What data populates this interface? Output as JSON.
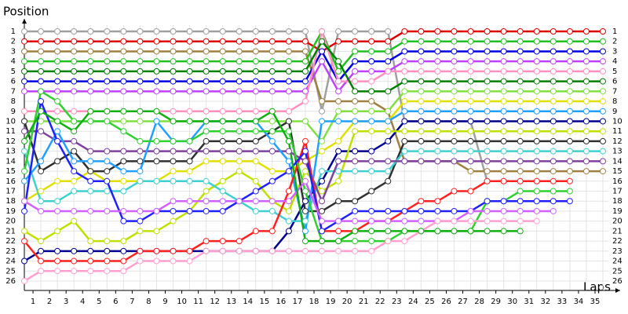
{
  "chart_data": {
    "type": "line",
    "title": "Position",
    "x_label": "Laps",
    "x": [
      0,
      1,
      2,
      3,
      4,
      5,
      6,
      7,
      8,
      9,
      10,
      11,
      12,
      13,
      14,
      15,
      16,
      17,
      18,
      19,
      20,
      21,
      22,
      23,
      24,
      25,
      26,
      27,
      28,
      29,
      30,
      31,
      32,
      33,
      34,
      35
    ],
    "xlim": [
      0,
      35
    ],
    "xticks": [
      1,
      2,
      3,
      4,
      5,
      6,
      7,
      8,
      9,
      10,
      11,
      12,
      13,
      14,
      15,
      16,
      17,
      18,
      19,
      20,
      21,
      22,
      23,
      24,
      25,
      26,
      27,
      28,
      29,
      30,
      31,
      32,
      33,
      34,
      35
    ],
    "ylim": [
      1,
      26
    ],
    "yticks": [
      1,
      2,
      3,
      4,
      5,
      6,
      7,
      8,
      9,
      10,
      11,
      12,
      13,
      14,
      15,
      16,
      17,
      18,
      19,
      20,
      21,
      22,
      23,
      24,
      25,
      26
    ],
    "grid": true,
    "series": [
      {
        "color": "#a0a0a0",
        "values": [
          1,
          1,
          1,
          1,
          1,
          1,
          1,
          1,
          1,
          1,
          1,
          1,
          1,
          1,
          1,
          1,
          1,
          1,
          9,
          1,
          1,
          1,
          1,
          10,
          10,
          10,
          10,
          10,
          16,
          16,
          16,
          16,
          null,
          null,
          null,
          null
        ]
      },
      {
        "color": "#e00000",
        "values": [
          2,
          2,
          2,
          2,
          2,
          2,
          2,
          2,
          2,
          2,
          2,
          2,
          2,
          2,
          2,
          2,
          2,
          2,
          3,
          2,
          2,
          2,
          2,
          1,
          1,
          1,
          1,
          1,
          1,
          1,
          1,
          1,
          1,
          1,
          1,
          1
        ]
      },
      {
        "color": "#a08040",
        "values": [
          3,
          3,
          3,
          3,
          3,
          3,
          3,
          3,
          3,
          3,
          3,
          3,
          3,
          3,
          3,
          3,
          3,
          3,
          8,
          8,
          8,
          8,
          9,
          14,
          14,
          14,
          14,
          15,
          15,
          15,
          15,
          15,
          15,
          15,
          15,
          15
        ]
      },
      {
        "color": "#20c020",
        "values": [
          4,
          4,
          4,
          4,
          4,
          4,
          4,
          4,
          4,
          4,
          4,
          4,
          4,
          4,
          4,
          4,
          4,
          4,
          1,
          5,
          3,
          3,
          3,
          2,
          2,
          2,
          2,
          2,
          2,
          2,
          2,
          2,
          2,
          2,
          2,
          2
        ]
      },
      {
        "color": "#0000e0",
        "values": [
          6,
          6,
          6,
          6,
          6,
          6,
          6,
          6,
          6,
          6,
          6,
          6,
          6,
          6,
          6,
          6,
          6,
          6,
          3,
          6,
          4,
          4,
          4,
          3,
          3,
          3,
          3,
          3,
          3,
          3,
          3,
          3,
          3,
          3,
          3,
          3
        ]
      },
      {
        "color": "#c040ff",
        "values": [
          7,
          7,
          7,
          7,
          7,
          7,
          7,
          7,
          7,
          7,
          7,
          7,
          7,
          7,
          7,
          7,
          7,
          7,
          4,
          7,
          5,
          5,
          5,
          4,
          4,
          4,
          4,
          4,
          4,
          4,
          4,
          4,
          4,
          4,
          4,
          4
        ]
      },
      {
        "color": "#ff90c0",
        "values": [
          9,
          9,
          9,
          9,
          9,
          9,
          9,
          9,
          9,
          9,
          9,
          9,
          9,
          9,
          9,
          9,
          9,
          8,
          1,
          6,
          6,
          6,
          5,
          5,
          5,
          5,
          5,
          5,
          5,
          5,
          5,
          5,
          5,
          5,
          5,
          5
        ]
      },
      {
        "color": "#008000",
        "values": [
          5,
          5,
          5,
          5,
          5,
          5,
          5,
          5,
          5,
          5,
          5,
          5,
          5,
          5,
          5,
          5,
          5,
          5,
          2,
          4,
          7,
          7,
          7,
          6,
          6,
          6,
          6,
          6,
          6,
          6,
          6,
          6,
          6,
          6,
          6,
          6
        ]
      },
      {
        "color": "#80e040",
        "values": [
          10,
          10,
          10,
          10,
          10,
          10,
          10,
          10,
          10,
          10,
          10,
          10,
          10,
          10,
          10,
          10,
          10,
          10,
          12,
          9,
          9,
          9,
          9,
          7,
          7,
          7,
          7,
          7,
          7,
          7,
          7,
          7,
          7,
          7,
          7,
          7
        ]
      },
      {
        "color": "#e0e000",
        "values": [
          18,
          17,
          16,
          16,
          15,
          16,
          16,
          16,
          16,
          15,
          15,
          14,
          14,
          14,
          14,
          15,
          15,
          14,
          13,
          12,
          10,
          10,
          10,
          8,
          8,
          8,
          8,
          8,
          8,
          8,
          8,
          8,
          8,
          8,
          8,
          8
        ]
      },
      {
        "color": "#000090",
        "values": [
          24,
          23,
          23,
          23,
          23,
          23,
          23,
          23,
          23,
          23,
          23,
          23,
          23,
          23,
          23,
          23,
          21,
          18,
          16,
          13,
          13,
          13,
          12,
          10,
          10,
          10,
          10,
          10,
          10,
          10,
          10,
          10,
          10,
          10,
          10,
          10
        ]
      },
      {
        "color": "#c0e000",
        "values": [
          21,
          22,
          21,
          20,
          22,
          22,
          22,
          21,
          21,
          20,
          19,
          17,
          16,
          15,
          16,
          18,
          19,
          15,
          17,
          16,
          11,
          11,
          11,
          11,
          11,
          11,
          11,
          11,
          11,
          11,
          11,
          11,
          11,
          11,
          11,
          11
        ]
      },
      {
        "color": "#303030",
        "values": [
          10,
          15,
          14,
          13,
          15,
          15,
          14,
          14,
          14,
          14,
          14,
          12,
          12,
          12,
          12,
          11,
          10,
          19,
          19,
          18,
          18,
          17,
          16,
          12,
          12,
          12,
          12,
          12,
          12,
          12,
          12,
          12,
          12,
          12,
          12,
          12
        ]
      },
      {
        "color": "#40d0d0",
        "values": [
          13,
          18,
          18,
          17,
          17,
          17,
          17,
          16,
          16,
          16,
          16,
          16,
          17,
          18,
          19,
          19,
          20,
          20,
          15,
          15,
          15,
          15,
          15,
          13,
          13,
          13,
          13,
          13,
          13,
          13,
          13,
          13,
          13,
          13,
          13,
          13
        ]
      },
      {
        "color": "#8040a0",
        "values": [
          11,
          11,
          12,
          12,
          13,
          13,
          13,
          13,
          13,
          13,
          13,
          13,
          13,
          13,
          13,
          13,
          13,
          14,
          18,
          14,
          14,
          14,
          14,
          14,
          14,
          14,
          14,
          14,
          14,
          14,
          14,
          14,
          14,
          14,
          14,
          14
        ]
      },
      {
        "color": "#20a0ff",
        "values": [
          16,
          14,
          11,
          14,
          14,
          14,
          15,
          15,
          10,
          12,
          12,
          10,
          10,
          10,
          10,
          12,
          14,
          21,
          10,
          10,
          10,
          10,
          10,
          9,
          9,
          9,
          9,
          9,
          9,
          9,
          9,
          9,
          9,
          9,
          9,
          9
        ]
      },
      {
        "color": "#ff2020",
        "values": [
          22,
          24,
          24,
          24,
          24,
          24,
          24,
          23,
          23,
          23,
          23,
          22,
          22,
          22,
          21,
          21,
          17,
          12,
          21,
          21,
          21,
          20,
          20,
          19,
          18,
          18,
          17,
          17,
          16,
          16,
          16,
          16,
          16,
          16,
          null,
          null
        ]
      },
      {
        "color": "#30d030",
        "values": [
          15,
          7,
          8,
          10,
          10,
          10,
          11,
          12,
          12,
          12,
          12,
          11,
          11,
          11,
          11,
          11,
          11,
          17,
          22,
          22,
          22,
          22,
          22,
          21,
          21,
          21,
          21,
          21,
          18,
          18,
          17,
          17,
          17,
          17,
          null,
          null
        ]
      },
      {
        "color": "#2020ff",
        "values": [
          19,
          8,
          12,
          15,
          16,
          16,
          20,
          20,
          19,
          19,
          19,
          19,
          19,
          18,
          17,
          16,
          15,
          13,
          21,
          20,
          19,
          19,
          19,
          19,
          19,
          19,
          19,
          19,
          18,
          18,
          18,
          18,
          18,
          18,
          null,
          null
        ]
      },
      {
        "color": "#d060ff",
        "values": [
          18,
          19,
          19,
          19,
          19,
          19,
          19,
          19,
          19,
          18,
          18,
          18,
          18,
          18,
          18,
          18,
          18,
          16,
          20,
          20,
          20,
          20,
          20,
          20,
          20,
          20,
          20,
          19,
          19,
          19,
          19,
          19,
          19,
          null,
          null,
          null
        ]
      },
      {
        "color": "#ffa0d0",
        "values": [
          26,
          25,
          25,
          25,
          25,
          25,
          25,
          24,
          24,
          24,
          24,
          23,
          23,
          23,
          23,
          23,
          23,
          23,
          23,
          23,
          23,
          23,
          22,
          22,
          21,
          20,
          20,
          20,
          20,
          20,
          20,
          20,
          null,
          null,
          null,
          null
        ]
      },
      {
        "color": "#10b010",
        "values": [
          12,
          9,
          10,
          11,
          9,
          9,
          9,
          9,
          9,
          10,
          10,
          10,
          10,
          10,
          10,
          9,
          12,
          22,
          22,
          22,
          21,
          21,
          21,
          21,
          21,
          21,
          21,
          21,
          21,
          21,
          21,
          null,
          null,
          null,
          null,
          null
        ]
      }
    ]
  }
}
